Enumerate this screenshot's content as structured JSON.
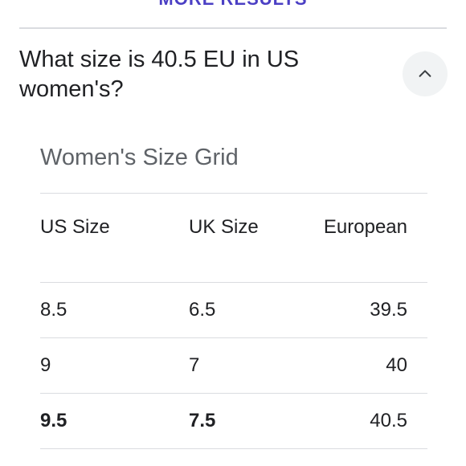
{
  "top_link": "MORE RESULTS",
  "faq": {
    "question": "What size is 40.5 EU in US women's?",
    "toggle_icon": "chevron-up-icon"
  },
  "size_grid": {
    "title": "Women's Size Grid",
    "headers": [
      "US Size",
      "UK Size",
      "European"
    ],
    "rows": [
      {
        "us": "8.5",
        "uk": "6.5",
        "eu": "39.5",
        "highlighted": false
      },
      {
        "us": "9",
        "uk": "7",
        "eu": "40",
        "highlighted": false
      },
      {
        "us": "9.5",
        "uk": "7.5",
        "eu": "40.5",
        "highlighted": true
      }
    ]
  },
  "colors": {
    "link": "#4b3fc4",
    "text": "#202124",
    "muted": "#5f6368",
    "divider": "#dadce0",
    "button_bg": "#f1f3f4"
  }
}
